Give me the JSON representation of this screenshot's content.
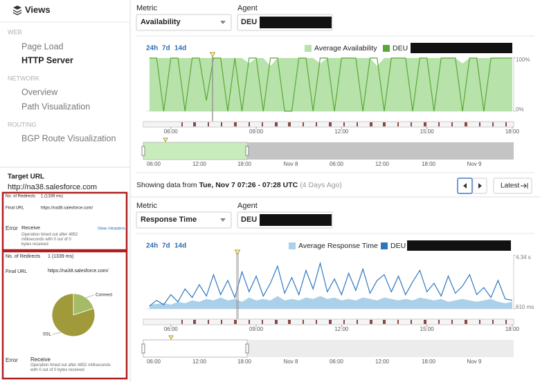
{
  "sidebar": {
    "title": "Views",
    "sections": [
      {
        "heading": "WEB",
        "items": [
          "Page Load",
          "HTTP Server"
        ]
      },
      {
        "heading": "NETWORK",
        "items": [
          "Overview",
          "Path Visualization"
        ]
      },
      {
        "heading": "ROUTING",
        "items": [
          "BGP Route Visualization"
        ]
      }
    ],
    "target_url_label": "Target URL",
    "target_url": "http://na38.salesforce.com"
  },
  "detail_1": {
    "redirects_label": "No. of Redirects",
    "redirects": "1 (1339 ms)",
    "final_url_label": "Final URL",
    "final_url": "https://na38.salesforce.com/",
    "error_label": "Error",
    "error": "Receive",
    "error_message": "Operation timed out after 4852 milliseconds with 0 out of 0 bytes received",
    "link": "View Headers"
  },
  "detail_2": {
    "redirects_label": "No. of Redirects",
    "redirects": "1 (1339 ms)",
    "final_url_label": "Final URL",
    "final_url": "https://na38.salesforce.com/",
    "error_label": "Error",
    "error": "Receive",
    "error_message": "Operation timed out after 4852 milliseconds with 0 out of 0 bytes received"
  },
  "panels": [
    {
      "metric_label": "Metric",
      "metric": "Availability",
      "agent_label": "Agent",
      "agent": "DEU",
      "ranges": [
        "24h",
        "7d",
        "14d"
      ]
    },
    {
      "metric_label": "Metric",
      "metric": "Response Time",
      "agent_label": "Agent",
      "agent": "DEU",
      "ranges": [
        "24h",
        "7d",
        "14d"
      ]
    }
  ],
  "status": {
    "prefix": "Showing data from",
    "range": "Tue, Nov 7 07:26 - 07:28 UTC",
    "age": "(4 Days Ago)",
    "latest": "Latest"
  },
  "chart_data": [
    {
      "type": "line",
      "x": [
        5.25,
        5.5,
        5.75,
        6,
        6.25,
        6.5,
        6.75,
        7,
        7.25,
        7.5,
        7.75,
        8,
        8.25,
        8.5,
        8.75,
        9,
        9.25,
        9.5,
        9.75,
        10,
        10.25,
        10.5,
        10.75,
        11,
        11.25,
        11.5,
        11.75,
        12,
        12.25,
        12.5,
        12.75,
        13,
        13.25,
        13.5,
        13.75,
        14,
        14.25,
        14.5,
        14.75,
        15,
        15.25,
        15.5,
        15.75,
        16,
        16.25,
        16.5,
        16.75,
        17,
        17.25,
        17.5,
        17.75,
        18
      ],
      "xlim": [
        5.13,
        18.05
      ],
      "xticks": [
        {
          "value": 6,
          "label": "06:00"
        },
        {
          "value": 9,
          "label": "09:00"
        },
        {
          "value": 12,
          "label": "12:00"
        },
        {
          "value": 15,
          "label": "15:00"
        },
        {
          "value": 18,
          "label": "18:00"
        }
      ],
      "ylim": [
        0,
        100
      ],
      "yticks": [
        {
          "value": 0,
          "label": "0%"
        },
        {
          "value": 100,
          "label": "100%"
        }
      ],
      "overview_ticks": [
        "06:00",
        "12:00",
        "18:00",
        "Nov 8",
        "06:00",
        "12:00",
        "18:00",
        "Nov 9"
      ],
      "series": [
        {
          "name": "Average Availability",
          "color": "#b7e2a9",
          "style": "area",
          "values": [
            100,
            100,
            100,
            100,
            100,
            100,
            100,
            100,
            100,
            100,
            100,
            100,
            100,
            100,
            90,
            100,
            100,
            85,
            100,
            100,
            100,
            100,
            100,
            100,
            90,
            100,
            100,
            100,
            100,
            100,
            100,
            100,
            85,
            100,
            100,
            100,
            100,
            100,
            100,
            100,
            100,
            100,
            100,
            100,
            90,
            100,
            100,
            100,
            100,
            100,
            100,
            100
          ]
        },
        {
          "name": "DEU",
          "color": "#5aa83a",
          "style": "line",
          "values": [
            100,
            100,
            0,
            100,
            100,
            0,
            100,
            100,
            20,
            100,
            100,
            0,
            100,
            0,
            100,
            100,
            0,
            100,
            100,
            0,
            0,
            100,
            100,
            0,
            100,
            100,
            0,
            100,
            100,
            100,
            0,
            100,
            100,
            0,
            100,
            100,
            100,
            0,
            100,
            100,
            0,
            100,
            100,
            100,
            0,
            100,
            100,
            0,
            100,
            100,
            100,
            100
          ]
        }
      ]
    },
    {
      "type": "line",
      "x": [
        5.25,
        5.5,
        5.75,
        6,
        6.25,
        6.5,
        6.75,
        7,
        7.25,
        7.5,
        7.75,
        8,
        8.25,
        8.5,
        8.75,
        9,
        9.25,
        9.5,
        9.75,
        10,
        10.25,
        10.5,
        10.75,
        11,
        11.25,
        11.5,
        11.75,
        12,
        12.25,
        12.5,
        12.75,
        13,
        13.25,
        13.5,
        13.75,
        14,
        14.25,
        14.5,
        14.75,
        15,
        15.25,
        15.5,
        15.75,
        16,
        16.25,
        16.5,
        16.75,
        17,
        17.25,
        17.5,
        17.75,
        18
      ],
      "xlim": [
        5.13,
        18.05
      ],
      "xticks": [
        {
          "value": 6,
          "label": "06:00"
        },
        {
          "value": 9,
          "label": "09:00"
        },
        {
          "value": 12,
          "label": "12:00"
        },
        {
          "value": 15,
          "label": "15:00"
        },
        {
          "value": 18,
          "label": "18:00"
        }
      ],
      "ylim": [
        0.61,
        4.34
      ],
      "yticks": [
        {
          "value": 0.61,
          "label": "610 ms"
        },
        {
          "value": 4.34,
          "label": "4.34 s"
        }
      ],
      "overview_ticks": [
        "06:00",
        "12:00",
        "18:00",
        "Nov 8",
        "06:00",
        "12:00",
        "18:00",
        "Nov 9"
      ],
      "series": [
        {
          "name": "Average Response Time",
          "color": "#aad0ea",
          "style": "area",
          "values": [
            0.9,
            0.95,
            1.0,
            0.9,
            1.1,
            1.0,
            1.2,
            1.1,
            1.3,
            1.2,
            1.4,
            1.2,
            1.3,
            1.1,
            1.4,
            1.2,
            1.3,
            1.2,
            1.5,
            1.2,
            1.3,
            1.2,
            1.4,
            1.3,
            1.5,
            1.3,
            1.4,
            1.2,
            1.3,
            1.2,
            1.4,
            1.3,
            1.2,
            1.4,
            1.3,
            1.2,
            1.3,
            1.2,
            1.4,
            1.3,
            1.2,
            1.3,
            1.1,
            1.2,
            1.3,
            1.2,
            1.1,
            1.2,
            1.3,
            1.1,
            1.0,
            1.1
          ]
        },
        {
          "name": "DEU",
          "color": "#2e77c0",
          "style": "line",
          "values": [
            0.8,
            1.2,
            0.9,
            1.6,
            1.1,
            2.0,
            1.4,
            2.3,
            1.5,
            3.0,
            1.6,
            2.6,
            1.4,
            3.2,
            1.8,
            2.9,
            1.5,
            2.4,
            3.6,
            1.7,
            2.8,
            1.6,
            3.3,
            2.0,
            3.8,
            1.8,
            2.7,
            1.6,
            3.1,
            1.9,
            3.4,
            1.7,
            2.6,
            3.0,
            1.8,
            2.9,
            1.6,
            2.5,
            3.3,
            1.8,
            2.4,
            1.5,
            2.9,
            1.7,
            2.2,
            3.0,
            1.6,
            2.1,
            1.4,
            2.6,
            1.3,
            1.2
          ]
        }
      ]
    },
    {
      "type": "pie",
      "categories": [
        "Connect",
        "SSL"
      ],
      "values": [
        20,
        80
      ],
      "colors": [
        "#a6bb68",
        "#a19a3b"
      ]
    }
  ]
}
